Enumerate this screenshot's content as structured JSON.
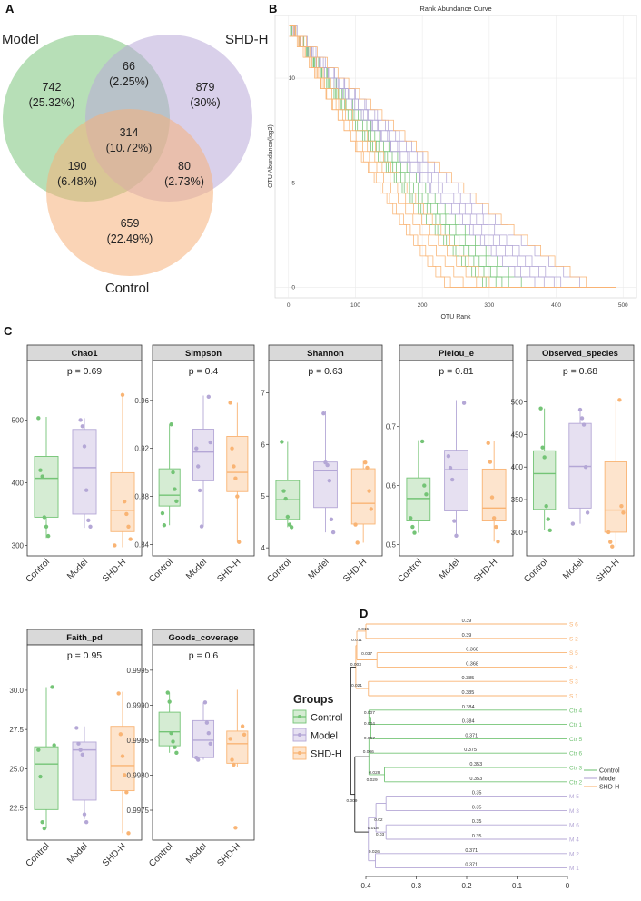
{
  "panels": {
    "a": "A",
    "b": "B",
    "c": "C",
    "d": "D"
  },
  "venn": {
    "sets": [
      {
        "name": "Model",
        "color": "#7cc47c"
      },
      {
        "name": "SHD-H",
        "color": "#b9a9d8"
      },
      {
        "name": "Control",
        "color": "#f6b07a"
      }
    ],
    "regions": [
      {
        "id": "model-only",
        "count": "742",
        "pct": "(25.32%)"
      },
      {
        "id": "model-shd",
        "count": "66",
        "pct": "(2.25%)"
      },
      {
        "id": "shd-only",
        "count": "879",
        "pct": "(30%)"
      },
      {
        "id": "all-three",
        "count": "314",
        "pct": "(10.72%)"
      },
      {
        "id": "model-control",
        "count": "190",
        "pct": "(6.48%)"
      },
      {
        "id": "shd-control",
        "count": "80",
        "pct": "(2.73%)"
      },
      {
        "id": "control-only",
        "count": "659",
        "pct": "(22.49%)"
      }
    ]
  },
  "chart_data": [
    {
      "type": "line",
      "title": "Rank Abundance Curve",
      "xlabel": "OTU Rank",
      "ylabel": "OTU Abundance(log2)",
      "xlim": [
        -20,
        520
      ],
      "ylim": [
        -0.5,
        13
      ],
      "xticks": [
        0,
        100,
        200,
        300,
        400,
        500
      ],
      "yticks": [
        0,
        5,
        10
      ],
      "series": [
        {
          "group": "Control",
          "color": "#74c476",
          "n": 6,
          "maxRank": [
            330,
            300,
            340,
            360,
            305,
            320
          ]
        },
        {
          "group": "Model",
          "color": "#b4a7d6",
          "n": 6,
          "maxRank": [
            420,
            380,
            450,
            395,
            370,
            410
          ]
        },
        {
          "group": "SHD-H",
          "color": "#f9b474",
          "n": 6,
          "maxRank": [
            250,
            310,
            270,
            460,
            290,
            240
          ]
        }
      ]
    },
    {
      "type": "box",
      "categories": [
        "Control",
        "Model",
        "SHD-H"
      ],
      "colors": {
        "Control": "#74c476",
        "Model": "#b4a7d6",
        "SHD-H": "#f9b474"
      },
      "fills": {
        "Control": "#d5ecd3",
        "Model": "#e6e0f1",
        "SHD-H": "#fde4cd"
      },
      "facets": [
        {
          "title": "Chao1",
          "p": "p = 0.69",
          "ylim": [
            292,
            560
          ],
          "yticks": [
            300,
            400,
            500
          ],
          "boxes": [
            {
              "min": 312,
              "q1": 345,
              "med": 407,
              "q3": 442,
              "max": 505,
              "points": [
                503,
                420,
                410,
                345,
                330,
                315
              ]
            },
            {
              "min": 328,
              "q1": 350,
              "med": 424,
              "q3": 485,
              "max": 503,
              "points": [
                500,
                490,
                458,
                388,
                340,
                330
              ]
            },
            {
              "min": 297,
              "q1": 322,
              "med": 356,
              "q3": 416,
              "max": 543,
              "points": [
                540,
                370,
                350,
                330,
                310,
                300
              ]
            }
          ]
        },
        {
          "title": "Simpson",
          "p": "p = 0.4",
          "ylim": [
            0.835,
            0.975
          ],
          "yticks": [
            0.84,
            0.88,
            0.92,
            0.96
          ],
          "boxes": [
            {
              "min": 0.856,
              "q1": 0.872,
              "med": 0.881,
              "q3": 0.903,
              "max": 0.94,
              "points": [
                0.94,
                0.9,
                0.886,
                0.876,
                0.866,
                0.856
              ]
            },
            {
              "min": 0.855,
              "q1": 0.893,
              "med": 0.917,
              "q3": 0.936,
              "max": 0.964,
              "points": [
                0.963,
                0.925,
                0.92,
                0.905,
                0.885,
                0.855
              ]
            },
            {
              "min": 0.842,
              "q1": 0.884,
              "med": 0.9,
              "q3": 0.93,
              "max": 0.958,
              "points": [
                0.958,
                0.92,
                0.905,
                0.895,
                0.88,
                0.842
              ]
            }
          ]
        },
        {
          "title": "Shannon",
          "p": "p = 0.63",
          "ylim": [
            3.95,
            7.2
          ],
          "yticks": [
            4,
            5,
            6,
            7
          ],
          "boxes": [
            {
              "min": 4.4,
              "q1": 4.55,
              "med": 4.93,
              "q3": 5.3,
              "max": 6.05,
              "points": [
                6.05,
                5.1,
                4.95,
                4.6,
                4.45,
                4.4
              ]
            },
            {
              "min": 4.3,
              "q1": 4.78,
              "med": 5.49,
              "q3": 5.66,
              "max": 6.65,
              "points": [
                6.6,
                5.65,
                5.6,
                5.3,
                4.55,
                4.3
              ]
            },
            {
              "min": 4.1,
              "q1": 4.46,
              "med": 4.86,
              "q3": 5.53,
              "max": 5.68,
              "points": [
                5.65,
                5.55,
                5.1,
                4.75,
                4.45,
                4.1
              ]
            }
          ]
        },
        {
          "title": "Pielou_e",
          "p": "p = 0.81",
          "ylim": [
            0.49,
            0.775
          ],
          "yticks": [
            0.5,
            0.6,
            0.7
          ],
          "boxes": [
            {
              "min": 0.52,
              "q1": 0.54,
              "med": 0.578,
              "q3": 0.613,
              "max": 0.677,
              "points": [
                0.675,
                0.6,
                0.585,
                0.545,
                0.53,
                0.52
              ]
            },
            {
              "min": 0.515,
              "q1": 0.557,
              "med": 0.627,
              "q3": 0.66,
              "max": 0.745,
              "points": [
                0.74,
                0.65,
                0.63,
                0.61,
                0.54,
                0.515
              ]
            },
            {
              "min": 0.505,
              "q1": 0.54,
              "med": 0.562,
              "q3": 0.628,
              "max": 0.675,
              "points": [
                0.672,
                0.64,
                0.58,
                0.545,
                0.53,
                0.505
              ]
            }
          ]
        },
        {
          "title": "Observed_species",
          "p": "p = 0.68",
          "ylim": [
            272,
            530
          ],
          "yticks": [
            300,
            350,
            400,
            450,
            500
          ],
          "boxes": [
            {
              "min": 303,
              "q1": 335,
              "med": 390,
              "q3": 425,
              "max": 490,
              "points": [
                490,
                430,
                415,
                340,
                320,
                303
              ]
            },
            {
              "min": 313,
              "q1": 337,
              "med": 401,
              "q3": 467,
              "max": 488,
              "points": [
                488,
                475,
                465,
                400,
                330,
                313
              ]
            },
            {
              "min": 278,
              "q1": 300,
              "med": 334,
              "q3": 408,
              "max": 503,
              "points": [
                503,
                340,
                330,
                300,
                285,
                278
              ]
            }
          ]
        },
        {
          "title": "Faith_pd",
          "p": "p = 0.95",
          "ylim": [
            20.8,
            31.5
          ],
          "yticks": [
            22.5,
            25.0,
            27.5,
            30.0
          ],
          "boxes": [
            {
              "min": 21.2,
              "q1": 22.4,
              "med": 25.3,
              "q3": 26.4,
              "max": 30.2,
              "points": [
                30.2,
                26.5,
                26.2,
                24.5,
                21.6,
                21.2
              ]
            },
            {
              "min": 21.8,
              "q1": 23.0,
              "med": 26.2,
              "q3": 26.7,
              "max": 27.7,
              "points": [
                27.6,
                26.6,
                26.2,
                25.9,
                22.1,
                21.6
              ]
            },
            {
              "min": 20.9,
              "q1": 23.6,
              "med": 25.2,
              "q3": 27.7,
              "max": 29.9,
              "points": [
                29.8,
                27.2,
                25.8,
                24.6,
                23.5,
                20.9
              ]
            }
          ]
        },
        {
          "title": "Goods_coverage",
          "p": "p = 0.6",
          "ylim": [
            0.99715,
            0.99955
          ],
          "yticks": [
            0.9975,
            0.998,
            0.9985,
            0.999,
            0.9995
          ],
          "boxes": [
            {
              "min": 0.99832,
              "q1": 0.99842,
              "med": 0.99862,
              "q3": 0.9989,
              "max": 0.99918,
              "points": [
                0.99918,
                0.99905,
                0.9986,
                0.99848,
                0.9984,
                0.99832
              ]
            },
            {
              "min": 0.99822,
              "q1": 0.99825,
              "med": 0.9985,
              "q3": 0.99878,
              "max": 0.99904,
              "points": [
                0.99904,
                0.99875,
                0.9986,
                0.99845,
                0.99825,
                0.99822
              ]
            },
            {
              "min": 0.99812,
              "q1": 0.99817,
              "med": 0.99845,
              "q3": 0.99863,
              "max": 0.99922,
              "points": [
                0.9987,
                0.99858,
                0.99852,
                0.99822,
                0.99815,
                0.99725
              ]
            }
          ]
        }
      ]
    },
    {
      "type": "dendrogram",
      "xlim": [
        0.4,
        0
      ],
      "xticks": [
        0.4,
        0.3,
        0.2,
        0.1,
        0
      ],
      "leaves": [
        {
          "name": "S 6",
          "group": "SHD-H",
          "len": "0.39"
        },
        {
          "name": "S 2",
          "group": "SHD-H",
          "len": "0.39"
        },
        {
          "name": "S 5",
          "group": "SHD-H",
          "len": "0.368"
        },
        {
          "name": "S 4",
          "group": "SHD-H",
          "len": "0.368"
        },
        {
          "name": "S 3",
          "group": "SHD-H",
          "len": "0.385"
        },
        {
          "name": "S 1",
          "group": "SHD-H",
          "len": "0.385"
        },
        {
          "name": "Ctr 4",
          "group": "Control",
          "len": "0.384"
        },
        {
          "name": "Ctr 1",
          "group": "Control",
          "len": "0.384"
        },
        {
          "name": "Ctr 5",
          "group": "Control",
          "len": "0.371"
        },
        {
          "name": "Ctr 6",
          "group": "Control",
          "len": "0.375"
        },
        {
          "name": "Ctr 3",
          "group": "Control",
          "len": "0.353"
        },
        {
          "name": "Ctr 2",
          "group": "Control",
          "len": "0.353"
        },
        {
          "name": "M 5",
          "group": "Model",
          "len": "0.35"
        },
        {
          "name": "M 3",
          "group": "Model",
          "len": "0.35"
        },
        {
          "name": "M 6",
          "group": "Model",
          "len": "0.35"
        },
        {
          "name": "M 4",
          "group": "Model",
          "len": "0.35"
        },
        {
          "name": "M 2",
          "group": "Model",
          "len": "0.371"
        },
        {
          "name": "M 1",
          "group": "Model",
          "len": "0.371"
        }
      ],
      "node_labels": [
        "0.015",
        "0.011",
        "0.037",
        "0.003",
        "0.021",
        "0.007",
        "0.004",
        "0.007",
        "0.006",
        "0.029",
        "0.029",
        "0.02",
        "0.018",
        "0.03",
        "0.026",
        "0.009"
      ],
      "legend": [
        "Control",
        "Model",
        "SHD-H"
      ]
    }
  ],
  "legend": {
    "title": "Groups",
    "items": [
      {
        "label": "Control",
        "color": "#74c476",
        "fill": "#d5ecd3"
      },
      {
        "label": "Model",
        "color": "#b4a7d6",
        "fill": "#e6e0f1"
      },
      {
        "label": "SHD-H",
        "color": "#f9b474",
        "fill": "#fde4cd"
      }
    ]
  }
}
